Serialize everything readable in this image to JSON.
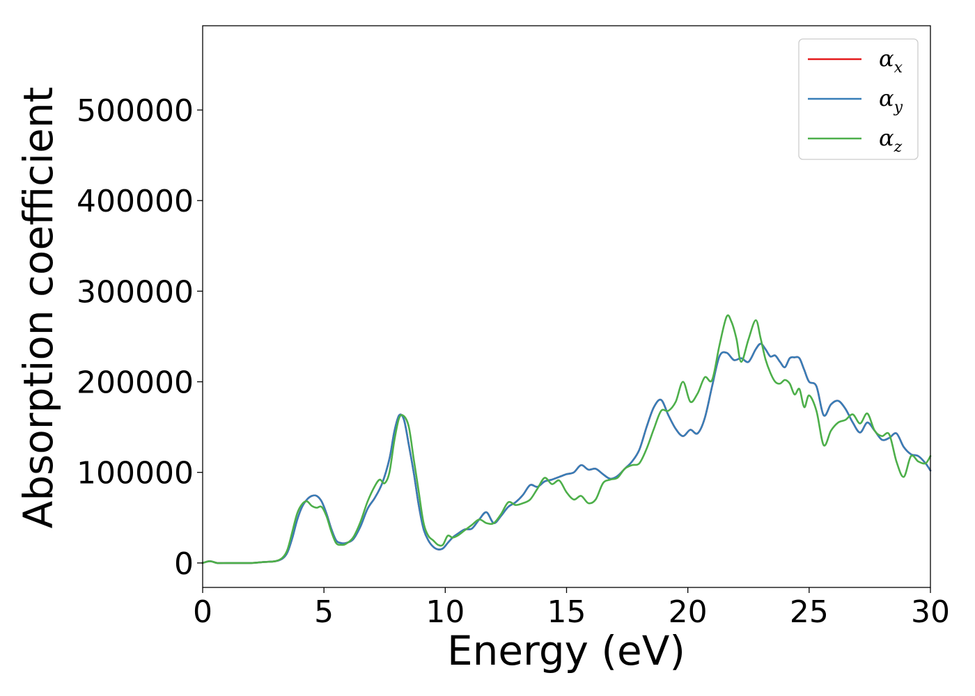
{
  "chart_data": {
    "type": "line",
    "title": "",
    "xlabel": "Energy (eV)",
    "ylabel": "Absorption coefficient",
    "xlim": [
      0,
      30
    ],
    "ylim": [
      -27000,
      593000
    ],
    "grid": false,
    "legend_position": "top-right",
    "x_ticks": [
      0,
      5,
      10,
      15,
      20,
      25,
      30
    ],
    "x_tick_labels": [
      "0",
      "5",
      "10",
      "15",
      "20",
      "25",
      "30"
    ],
    "y_ticks": [
      0,
      100000,
      200000,
      300000,
      400000,
      500000
    ],
    "y_tick_labels": [
      "0",
      "100000",
      "200000",
      "300000",
      "400000",
      "500000"
    ],
    "series": [
      {
        "name": "α_x",
        "legend_base": "α",
        "legend_sub": "x",
        "color": "#e41a1c",
        "x": [
          0,
          0.3,
          0.6,
          1.0,
          1.5,
          2.0,
          2.5,
          3.0,
          3.3,
          3.5,
          3.7,
          3.9,
          4.1,
          4.3,
          4.5,
          4.7,
          4.9,
          5.1,
          5.3,
          5.5,
          5.7,
          5.9,
          6.2,
          6.5,
          6.8,
          7.1,
          7.4,
          7.7,
          7.9,
          8.1,
          8.3,
          8.5,
          8.7,
          8.9,
          9.1,
          9.3,
          9.5,
          9.7,
          9.9,
          10.1,
          10.3,
          10.5,
          10.8,
          11.1,
          11.4,
          11.7,
          12.0,
          12.3,
          12.6,
          12.9,
          13.2,
          13.5,
          13.8,
          14.1,
          14.4,
          14.7,
          15.0,
          15.3,
          15.6,
          15.9,
          16.2,
          16.5,
          16.8,
          17.1,
          17.4,
          17.7,
          18.0,
          18.3,
          18.6,
          18.9,
          19.2,
          19.5,
          19.8,
          20.1,
          20.4,
          20.7,
          21.0,
          21.3,
          21.6,
          21.9,
          22.2,
          22.5,
          22.8,
          23.0,
          23.2,
          23.4,
          23.6,
          23.8,
          24.0,
          24.2,
          24.4,
          24.6,
          24.8,
          25.0,
          25.3,
          25.6,
          25.9,
          26.2,
          26.5,
          26.8,
          27.1,
          27.4,
          27.7,
          28.0,
          28.3,
          28.6,
          28.9,
          29.2,
          29.5,
          29.8,
          30.0
        ],
        "y": [
          0,
          2000,
          0,
          0,
          0,
          0,
          1000,
          2000,
          5000,
          12000,
          28000,
          48000,
          62000,
          70000,
          74000,
          74000,
          68000,
          55000,
          38000,
          25000,
          22000,
          22000,
          26000,
          40000,
          60000,
          72000,
          88000,
          115000,
          145000,
          163000,
          158000,
          130000,
          100000,
          65000,
          38000,
          25000,
          18000,
          15000,
          16000,
          22000,
          28000,
          32000,
          37000,
          38000,
          48000,
          56000,
          44000,
          52000,
          62000,
          67000,
          75000,
          86000,
          84000,
          90000,
          92000,
          95000,
          98000,
          100000,
          108000,
          103000,
          104000,
          98000,
          93000,
          96000,
          104000,
          112000,
          125000,
          150000,
          172000,
          180000,
          163000,
          148000,
          140000,
          147000,
          143000,
          160000,
          195000,
          228000,
          232000,
          224000,
          226000,
          222000,
          236000,
          242000,
          236000,
          228000,
          229000,
          222000,
          216000,
          226000,
          227000,
          226000,
          213000,
          200000,
          195000,
          163000,
          175000,
          179000,
          170000,
          155000,
          144000,
          155000,
          146000,
          136000,
          138000,
          143000,
          128000,
          120000,
          118000,
          110000,
          102000
        ]
      },
      {
        "name": "α_y",
        "legend_base": "α",
        "legend_sub": "y",
        "color": "#377eb8",
        "x": [
          0,
          0.3,
          0.6,
          1.0,
          1.5,
          2.0,
          2.5,
          3.0,
          3.3,
          3.5,
          3.7,
          3.9,
          4.1,
          4.3,
          4.5,
          4.7,
          4.9,
          5.1,
          5.3,
          5.5,
          5.7,
          5.9,
          6.2,
          6.5,
          6.8,
          7.1,
          7.4,
          7.7,
          7.9,
          8.1,
          8.3,
          8.5,
          8.7,
          8.9,
          9.1,
          9.3,
          9.5,
          9.7,
          9.9,
          10.1,
          10.3,
          10.5,
          10.8,
          11.1,
          11.4,
          11.7,
          12.0,
          12.3,
          12.6,
          12.9,
          13.2,
          13.5,
          13.8,
          14.1,
          14.4,
          14.7,
          15.0,
          15.3,
          15.6,
          15.9,
          16.2,
          16.5,
          16.8,
          17.1,
          17.4,
          17.7,
          18.0,
          18.3,
          18.6,
          18.9,
          19.2,
          19.5,
          19.8,
          20.1,
          20.4,
          20.7,
          21.0,
          21.3,
          21.6,
          21.9,
          22.2,
          22.5,
          22.8,
          23.0,
          23.2,
          23.4,
          23.6,
          23.8,
          24.0,
          24.2,
          24.4,
          24.6,
          24.8,
          25.0,
          25.3,
          25.6,
          25.9,
          26.2,
          26.5,
          26.8,
          27.1,
          27.4,
          27.7,
          28.0,
          28.3,
          28.6,
          28.9,
          29.2,
          29.5,
          29.8,
          30.0
        ],
        "y": [
          0,
          2000,
          0,
          0,
          0,
          0,
          1000,
          2000,
          5000,
          12000,
          28000,
          48000,
          62000,
          70000,
          74000,
          74000,
          68000,
          55000,
          38000,
          25000,
          22000,
          22000,
          26000,
          40000,
          60000,
          72000,
          88000,
          115000,
          145000,
          163000,
          158000,
          130000,
          100000,
          65000,
          38000,
          25000,
          18000,
          15000,
          16000,
          22000,
          28000,
          32000,
          37000,
          38000,
          48000,
          56000,
          44000,
          52000,
          62000,
          67000,
          75000,
          86000,
          84000,
          90000,
          92000,
          95000,
          98000,
          100000,
          108000,
          103000,
          104000,
          98000,
          93000,
          96000,
          104000,
          112000,
          125000,
          150000,
          172000,
          180000,
          163000,
          148000,
          140000,
          147000,
          143000,
          160000,
          195000,
          228000,
          232000,
          224000,
          226000,
          222000,
          236000,
          242000,
          236000,
          228000,
          229000,
          222000,
          216000,
          226000,
          227000,
          226000,
          213000,
          200000,
          195000,
          163000,
          175000,
          179000,
          170000,
          155000,
          144000,
          155000,
          146000,
          136000,
          138000,
          143000,
          128000,
          120000,
          118000,
          110000,
          102000
        ]
      },
      {
        "name": "α_z",
        "legend_base": "α",
        "legend_sub": "z",
        "color": "#4daf4a",
        "x": [
          0,
          0.3,
          0.6,
          1.0,
          1.5,
          2.0,
          2.5,
          3.0,
          3.3,
          3.5,
          3.7,
          3.9,
          4.1,
          4.3,
          4.5,
          4.7,
          4.9,
          5.1,
          5.3,
          5.5,
          5.7,
          5.9,
          6.2,
          6.5,
          6.8,
          7.1,
          7.3,
          7.5,
          7.7,
          7.9,
          8.1,
          8.3,
          8.5,
          8.7,
          8.9,
          9.1,
          9.3,
          9.5,
          9.7,
          9.9,
          10.1,
          10.3,
          10.5,
          10.8,
          11.1,
          11.4,
          11.7,
          12.0,
          12.3,
          12.6,
          12.9,
          13.2,
          13.5,
          13.8,
          14.1,
          14.4,
          14.7,
          15.0,
          15.3,
          15.6,
          15.9,
          16.2,
          16.5,
          16.8,
          17.1,
          17.4,
          17.7,
          18.0,
          18.3,
          18.6,
          18.9,
          19.2,
          19.5,
          19.8,
          20.1,
          20.4,
          20.7,
          21.0,
          21.3,
          21.6,
          21.8,
          22.0,
          22.2,
          22.5,
          22.8,
          23.0,
          23.2,
          23.4,
          23.6,
          23.8,
          24.0,
          24.2,
          24.4,
          24.6,
          24.8,
          25.0,
          25.3,
          25.6,
          25.9,
          26.2,
          26.5,
          26.8,
          27.1,
          27.4,
          27.7,
          28.0,
          28.3,
          28.6,
          28.9,
          29.2,
          29.5,
          29.8,
          30.0
        ],
        "y": [
          0,
          2000,
          0,
          0,
          0,
          0,
          1000,
          2000,
          6000,
          15000,
          35000,
          55000,
          65000,
          68000,
          63000,
          61000,
          62000,
          52000,
          35000,
          22000,
          20000,
          21000,
          28000,
          45000,
          68000,
          85000,
          92000,
          88000,
          100000,
          135000,
          160000,
          162000,
          150000,
          115000,
          80000,
          45000,
          30000,
          25000,
          20000,
          20000,
          30000,
          28000,
          30000,
          36000,
          42000,
          48000,
          44000,
          44000,
          54000,
          67000,
          64000,
          66000,
          70000,
          82000,
          94000,
          87000,
          91000,
          78000,
          70000,
          74000,
          66000,
          70000,
          88000,
          92000,
          94000,
          104000,
          108000,
          110000,
          126000,
          148000,
          168000,
          168000,
          178000,
          200000,
          178000,
          187000,
          205000,
          202000,
          240000,
          272000,
          266000,
          248000,
          222000,
          247000,
          268000,
          248000,
          225000,
          210000,
          200000,
          198000,
          202000,
          198000,
          186000,
          192000,
          172000,
          185000,
          168000,
          130000,
          146000,
          155000,
          158000,
          164000,
          154000,
          165000,
          146000,
          140000,
          142000,
          112000,
          95000,
          118000,
          112000,
          110000,
          118000
        ]
      }
    ]
  }
}
